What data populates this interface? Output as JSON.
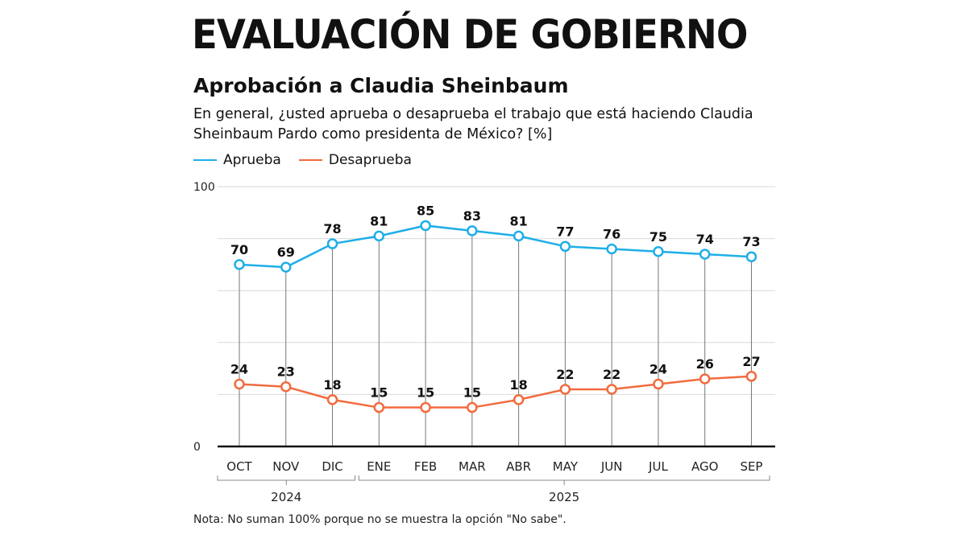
{
  "header": {
    "title": "EVALUACIÓN DE GOBIERNO",
    "subtitle": "Aprobación a Claudia Sheinbaum",
    "question": "En general, ¿usted aprueba o desaprueba el trabajo que está haciendo Claudia Sheinbaum Pardo como presidenta de México?  [%]"
  },
  "note": "Nota: No suman 100% porque no se muestra la opción \"No sabe\".",
  "chart_data": {
    "type": "line",
    "categories": [
      "OCT",
      "NOV",
      "DIC",
      "ENE",
      "FEB",
      "MAR",
      "ABR",
      "MAY",
      "JUN",
      "JUL",
      "AGO",
      "SEP"
    ],
    "year_groups": [
      {
        "label": "2024",
        "months": [
          "OCT",
          "NOV",
          "DIC"
        ]
      },
      {
        "label": "2025",
        "months": [
          "ENE",
          "FEB",
          "MAR",
          "ABR",
          "MAY",
          "JUN",
          "JUL",
          "AGO",
          "SEP"
        ]
      }
    ],
    "series": [
      {
        "name": "Aprueba",
        "color": "#1eaee8",
        "values": [
          70,
          69,
          78,
          81,
          85,
          83,
          81,
          77,
          76,
          75,
          74,
          73
        ]
      },
      {
        "name": "Desaprueba",
        "color": "#f26b3e",
        "values": [
          24,
          23,
          18,
          15,
          15,
          15,
          18,
          22,
          22,
          24,
          26,
          27
        ]
      }
    ],
    "ylim": [
      0,
      100
    ],
    "yticks_labeled": [
      "0",
      "100"
    ],
    "grid_step": 20,
    "grid": true,
    "legend": "top-left",
    "data_labels": true
  }
}
